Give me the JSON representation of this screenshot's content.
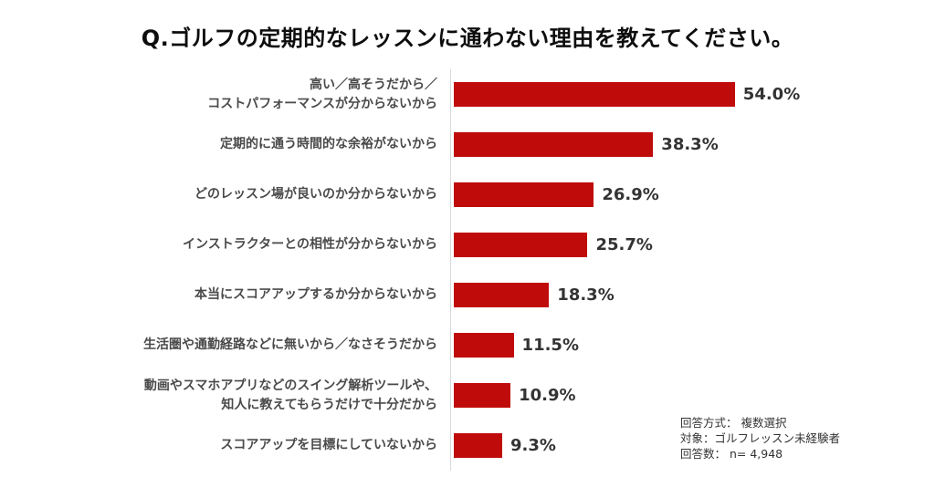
{
  "title": "Q.ゴルフの定期的なレッスンに通わない理由を教えてください。",
  "chart_data": {
    "type": "bar",
    "orientation": "horizontal",
    "title": "Q.ゴルフの定期的なレッスンに通わない理由を教えてください。",
    "categories": [
      "高い／高そうだから／\nコストパフォーマンスが分からないから",
      "定期的に通う時間的な余裕がないから",
      "どのレッスン場が良いのか分からないから",
      "インストラクターとの相性が分からないから",
      "本当にスコアアップするか分からないから",
      "生活圏や通勤経路などに無いから／なさそうだから",
      "動画やスマホアプリなどのスイング解析ツールや、\n知人に教えてもらうだけで十分だから",
      "スコアアップを目標にしていないから"
    ],
    "values": [
      54.0,
      38.3,
      26.9,
      25.7,
      18.3,
      11.5,
      10.9,
      9.3
    ],
    "value_suffix": "%",
    "xlabel": "",
    "ylabel": "",
    "xlim": [
      0,
      60
    ],
    "grid": false,
    "legend": false,
    "bar_color": "#c00b0b",
    "value_label_color": "#333333",
    "category_label_color": "#4a4a4a",
    "axis_line_color": "#d9d9d9"
  },
  "footnote": {
    "lines": [
      "回答方式： 複数選択",
      "対象：ゴルフレッスン未経験者",
      "回答数： n= 4,948"
    ]
  }
}
